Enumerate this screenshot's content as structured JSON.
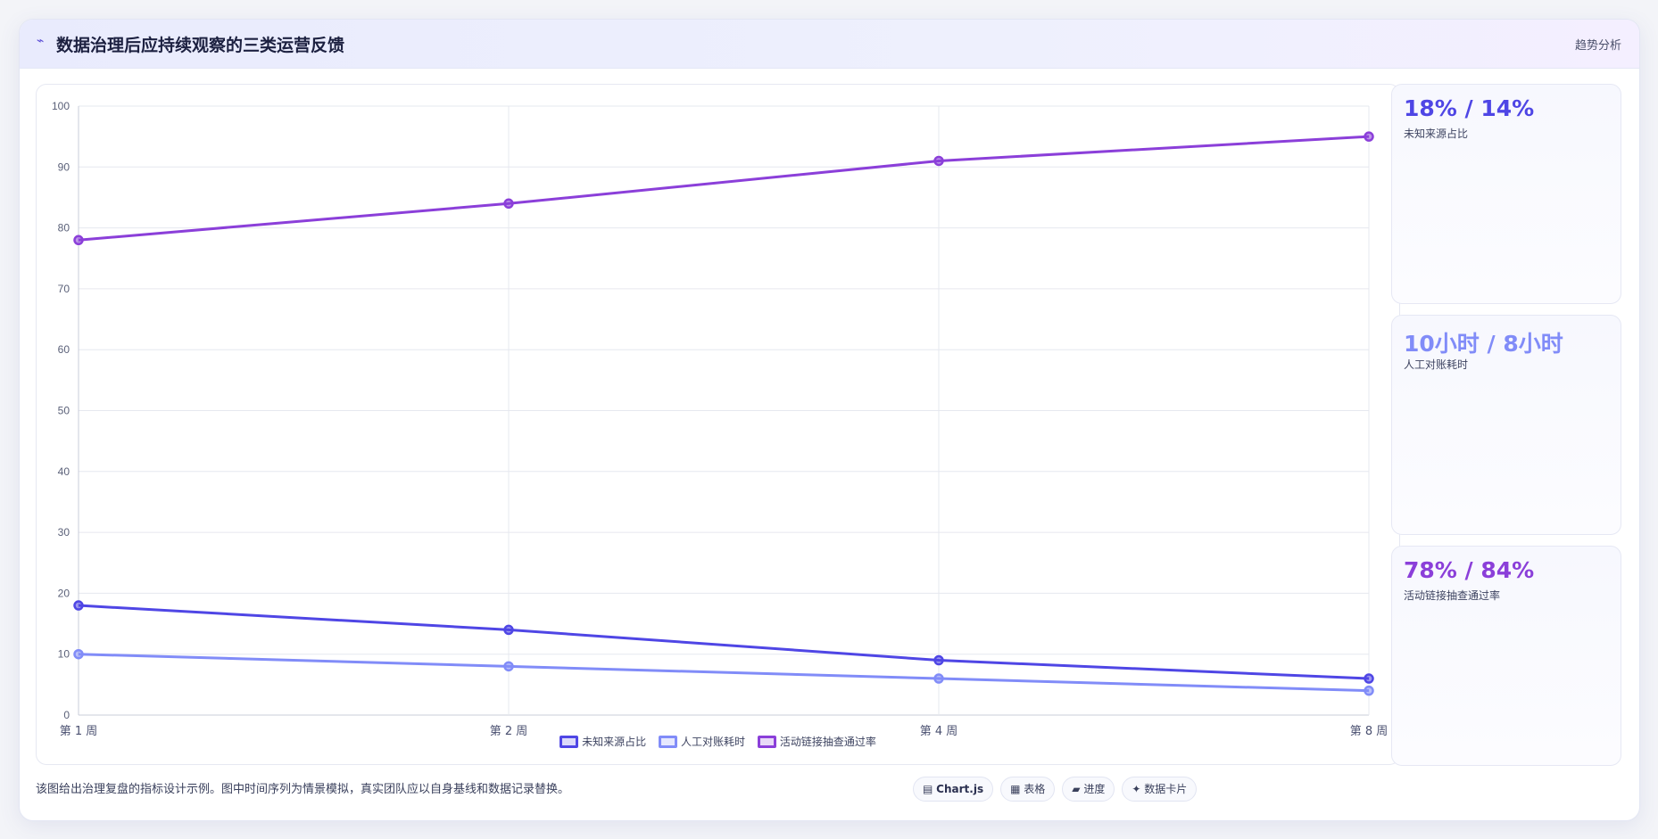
{
  "header": {
    "icon": "trend-line-icon",
    "title": "数据治理后应持续观察的三类运营反馈",
    "tag": "趋势分析"
  },
  "chart_data": {
    "type": "line",
    "categories": [
      "第 1 周",
      "第 2 周",
      "第 4 周",
      "第 8 周"
    ],
    "series": [
      {
        "name": "未知来源占比",
        "values": [
          18,
          14,
          9,
          6
        ],
        "color": "#4f46e5"
      },
      {
        "name": "人工对账耗时",
        "values": [
          10,
          8,
          6,
          4
        ],
        "color": "#818cf8"
      },
      {
        "name": "活动链接抽查通过率",
        "values": [
          78,
          84,
          91,
          95
        ],
        "color": "#8b3fd9"
      }
    ],
    "ylim": [
      0,
      100
    ],
    "yticks": [
      0,
      10,
      20,
      30,
      40,
      50,
      60,
      70,
      80,
      90,
      100
    ],
    "grid": true,
    "legend": "bottom"
  },
  "stats": [
    {
      "value": "18% / 14%",
      "label": "未知来源占比",
      "color": "#4f46e5"
    },
    {
      "value": "10小时 / 8小时",
      "label": "人工对账耗时",
      "color": "#818cf8"
    },
    {
      "value": "78% / 84%",
      "label": "活动链接抽查通过率",
      "color": "#8b3fd9"
    }
  ],
  "footer": {
    "note": "该图给出治理复盘的指标设计示例。图中时间序列为情景模拟，真实团队应以自身基线和数据记录替换。",
    "chips": [
      {
        "icon": "▤",
        "label": "Chart.js"
      },
      {
        "icon": "▦",
        "label": "表格"
      },
      {
        "icon": "▰",
        "label": "进度"
      },
      {
        "icon": "✦",
        "label": "数据卡片"
      }
    ]
  }
}
